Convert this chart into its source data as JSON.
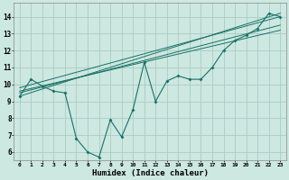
{
  "title": "",
  "xlabel": "Humidex (Indice chaleur)",
  "bg_color": "#cce8e0",
  "grid_color": "#aaccc4",
  "line_color": "#1a7068",
  "xlim": [
    -0.5,
    23.5
  ],
  "ylim": [
    5.5,
    14.8
  ],
  "xticks": [
    0,
    1,
    2,
    3,
    4,
    5,
    6,
    7,
    8,
    9,
    10,
    11,
    12,
    13,
    14,
    15,
    16,
    17,
    18,
    19,
    20,
    21,
    22,
    23
  ],
  "yticks": [
    6,
    7,
    8,
    9,
    10,
    11,
    12,
    13,
    14
  ],
  "main_x": [
    0,
    1,
    2,
    3,
    4,
    5,
    6,
    7,
    8,
    9,
    10,
    11,
    12,
    13,
    14,
    15,
    16,
    17,
    18,
    19,
    20,
    21,
    22,
    23
  ],
  "main_y": [
    9.3,
    10.3,
    9.9,
    9.6,
    9.5,
    6.8,
    6.0,
    5.7,
    7.9,
    6.9,
    8.5,
    11.3,
    9.0,
    10.2,
    10.5,
    10.3,
    10.3,
    11.0,
    12.0,
    12.6,
    12.9,
    13.3,
    14.2,
    14.0
  ],
  "ref_lines": [
    {
      "x": [
        0,
        23
      ],
      "y": [
        9.3,
        14.2
      ]
    },
    {
      "x": [
        0,
        23
      ],
      "y": [
        9.5,
        13.5
      ]
    },
    {
      "x": [
        0,
        23
      ],
      "y": [
        9.6,
        13.2
      ]
    },
    {
      "x": [
        0,
        23
      ],
      "y": [
        9.8,
        14.0
      ]
    }
  ]
}
